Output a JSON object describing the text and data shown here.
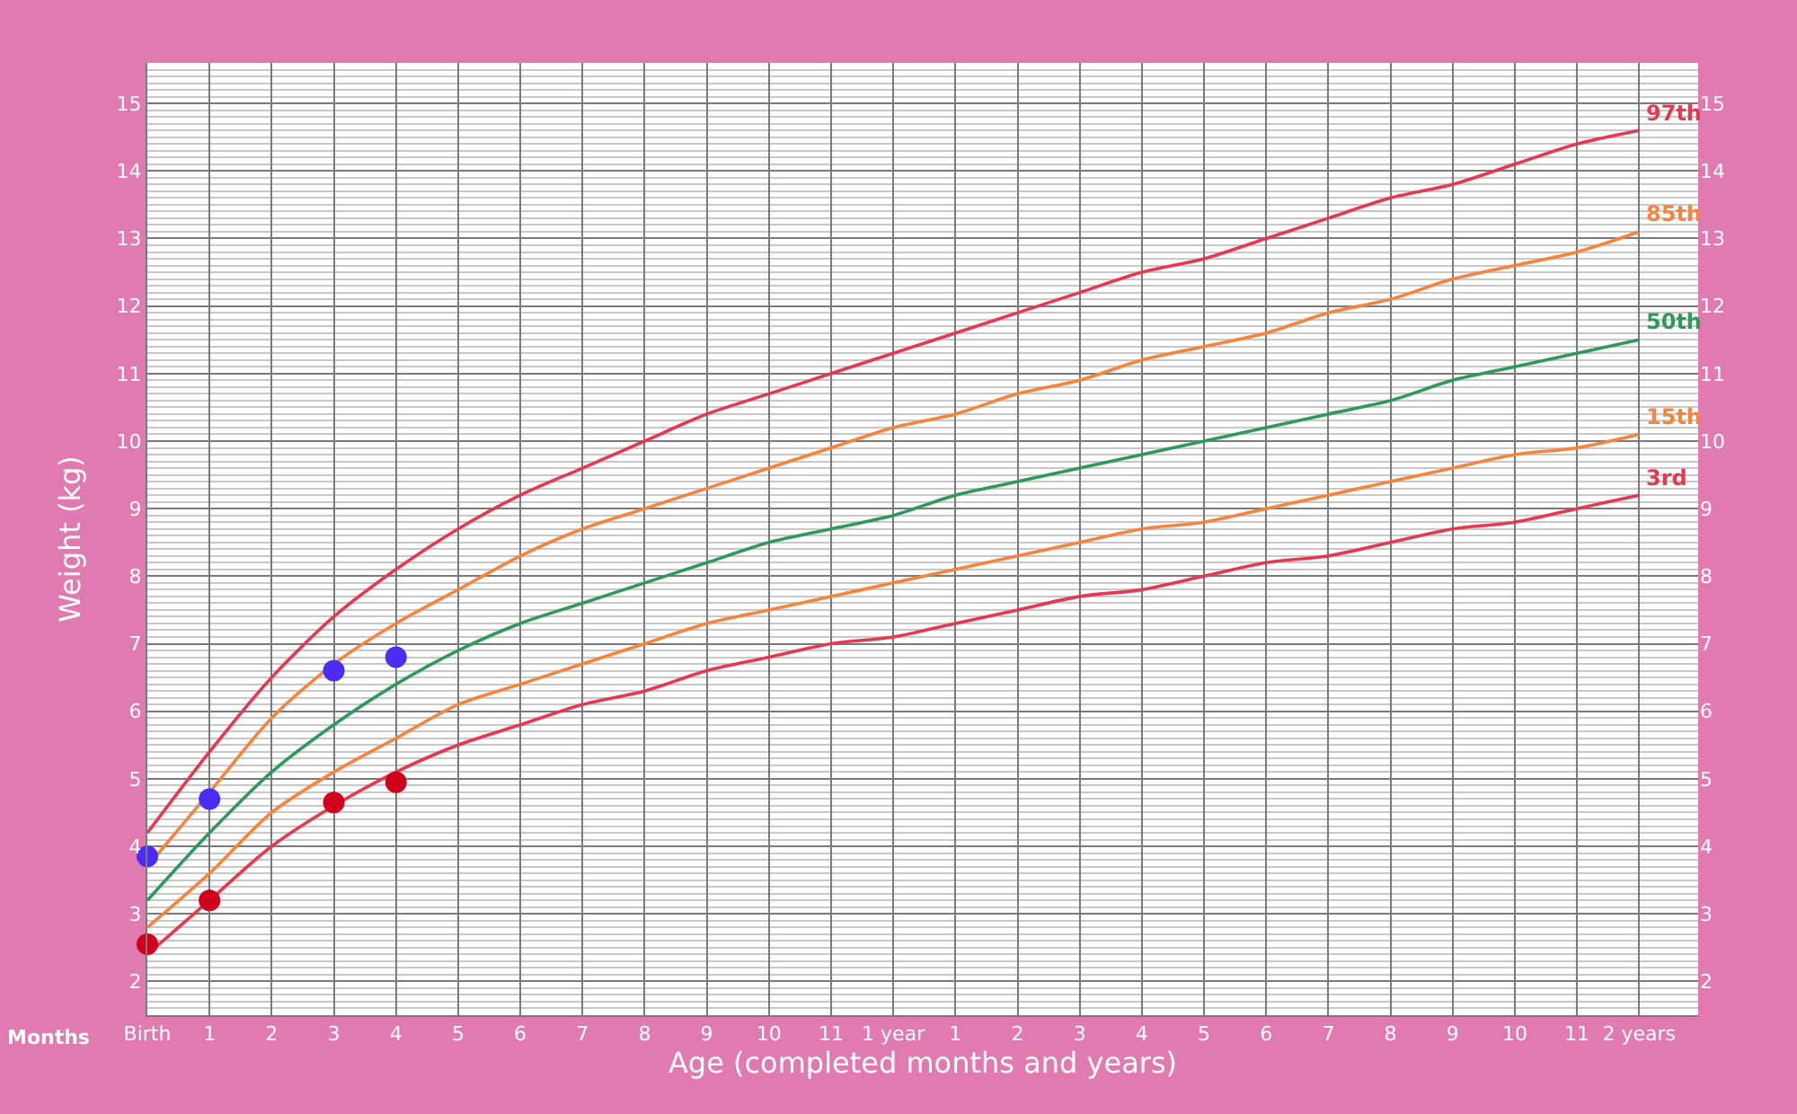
{
  "chart_data": {
    "type": "line",
    "xlabel": "Age (completed months and years)",
    "ylabel": "Weight (kg)",
    "annotations": [
      "Months"
    ],
    "categories": [
      "Birth",
      "1",
      "2",
      "3",
      "4",
      "5",
      "6",
      "7",
      "8",
      "9",
      "10",
      "11",
      "1 year",
      "1",
      "2",
      "3",
      "4",
      "5",
      "6",
      "7",
      "8",
      "9",
      "10",
      "11",
      "2 years"
    ],
    "series": [
      {
        "name": "97th",
        "color": "#e8384f",
        "values": [
          4.2,
          5.4,
          6.5,
          7.4,
          8.1,
          8.7,
          9.2,
          9.6,
          10.0,
          10.4,
          10.7,
          11.0,
          11.3,
          11.6,
          11.9,
          12.2,
          12.5,
          12.7,
          13.0,
          13.3,
          13.6,
          13.8,
          14.1,
          14.4,
          14.6
        ]
      },
      {
        "name": "85th",
        "color": "#f7843c",
        "values": [
          3.7,
          4.8,
          5.9,
          6.7,
          7.3,
          7.8,
          8.3,
          8.7,
          9.0,
          9.3,
          9.6,
          9.9,
          10.2,
          10.4,
          10.7,
          10.9,
          11.2,
          11.4,
          11.6,
          11.9,
          12.1,
          12.4,
          12.6,
          12.8,
          13.1
        ]
      },
      {
        "name": "50th",
        "color": "#2e9a5a",
        "values": [
          3.2,
          4.2,
          5.1,
          5.8,
          6.4,
          6.9,
          7.3,
          7.6,
          7.9,
          8.2,
          8.5,
          8.7,
          8.9,
          9.2,
          9.4,
          9.6,
          9.8,
          10.0,
          10.2,
          10.4,
          10.6,
          10.9,
          11.1,
          11.3,
          11.5
        ]
      },
      {
        "name": "15th",
        "color": "#f7843c",
        "values": [
          2.8,
          3.6,
          4.5,
          5.1,
          5.6,
          6.1,
          6.4,
          6.7,
          7.0,
          7.3,
          7.5,
          7.7,
          7.9,
          8.1,
          8.3,
          8.5,
          8.7,
          8.8,
          9.0,
          9.2,
          9.4,
          9.6,
          9.8,
          9.9,
          10.1
        ]
      },
      {
        "name": "3rd",
        "color": "#e8384f",
        "values": [
          2.4,
          3.2,
          4.0,
          4.6,
          5.1,
          5.5,
          5.8,
          6.1,
          6.3,
          6.6,
          6.8,
          7.0,
          7.1,
          7.3,
          7.5,
          7.7,
          7.8,
          8.0,
          8.2,
          8.3,
          8.5,
          8.7,
          8.8,
          9.0,
          9.2
        ]
      },
      {
        "type": "scatter",
        "marker": "circle",
        "color": "#4a2cf5",
        "values": [
          3.85,
          4.7,
          null,
          6.6,
          6.8,
          null,
          null,
          null,
          null,
          null,
          null,
          null,
          null,
          null,
          null,
          null,
          null,
          null,
          null,
          null,
          null,
          null,
          null,
          null,
          null
        ]
      },
      {
        "type": "scatter",
        "marker": "circle",
        "color": "#d0021b",
        "values": [
          2.55,
          3.2,
          null,
          4.65,
          4.95,
          null,
          null,
          null,
          null,
          null,
          null,
          null,
          null,
          null,
          null,
          null,
          null,
          null,
          null,
          null,
          null,
          null,
          null,
          null,
          null
        ]
      }
    ],
    "ylim": [
      1.5,
      15.6
    ],
    "yticks": [
      2,
      3,
      4,
      5,
      6,
      7,
      8,
      9,
      10,
      11,
      12,
      13,
      14,
      15
    ],
    "y2lim": [
      1.5,
      15.6
    ],
    "y2ticks": [
      2,
      3,
      4,
      5,
      6,
      7,
      8,
      9,
      10,
      11,
      12,
      13,
      14,
      15
    ],
    "grid": true,
    "legend": false,
    "marker": "none",
    "line_style": "solid"
  }
}
